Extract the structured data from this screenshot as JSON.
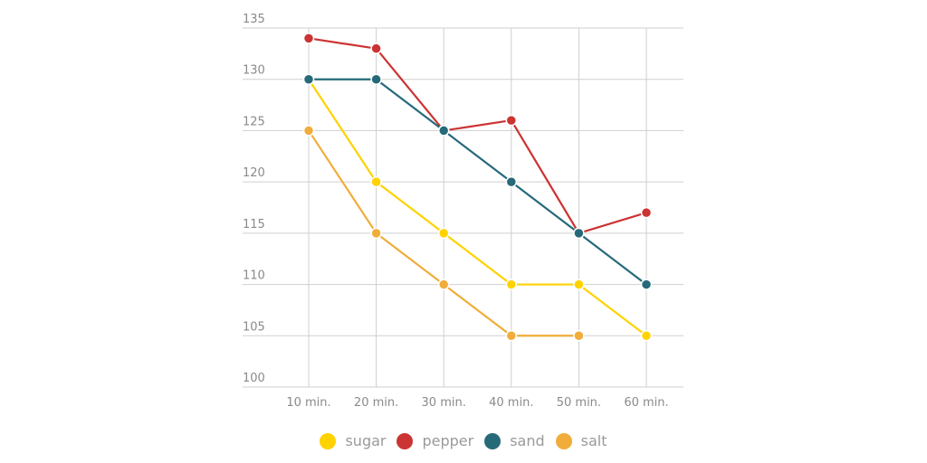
{
  "chart_data": {
    "type": "line",
    "title": "",
    "xlabel": "",
    "ylabel": "",
    "categories": [
      "10 min.",
      "20 min.",
      "30 min.",
      "40 min.",
      "50 min.",
      "60 min."
    ],
    "yticks": [
      100,
      105,
      110,
      115,
      120,
      125,
      130,
      135
    ],
    "ylim": [
      100,
      135
    ],
    "grid": true,
    "legend_position": "bottom",
    "series": [
      {
        "name": "sugar",
        "color": "#ffd200",
        "values": [
          130,
          120,
          115,
          110,
          110,
          105
        ]
      },
      {
        "name": "pepper",
        "color": "#cc3333",
        "values": [
          134,
          133,
          125,
          126,
          115,
          117
        ]
      },
      {
        "name": "sand",
        "color": "#266a7a",
        "values": [
          130,
          130,
          125,
          120,
          115,
          110
        ]
      },
      {
        "name": "salt",
        "color": "#f0ad3a",
        "values": [
          125,
          115,
          110,
          105,
          105,
          null
        ]
      }
    ]
  },
  "legend": {
    "items": [
      {
        "label": "sugar",
        "color": "#ffd200"
      },
      {
        "label": "pepper",
        "color": "#cc3333"
      },
      {
        "label": "sand",
        "color": "#266a7a"
      },
      {
        "label": "salt",
        "color": "#f0ad3a"
      }
    ]
  }
}
